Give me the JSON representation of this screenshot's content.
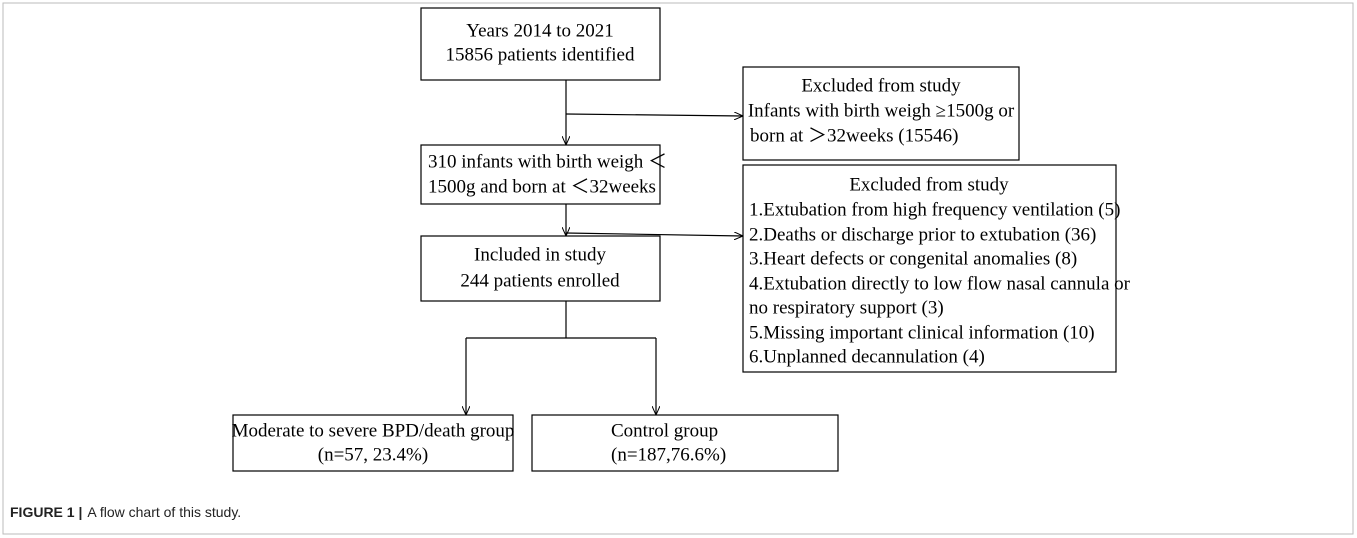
{
  "boxes": [
    {
      "lines": [
        "Years 2014 to 2021",
        "15856 patients identified"
      ]
    },
    {
      "lines": [
        "Excluded from study",
        "Infants with birth weigh ≥1500g or",
        "born at ＞32weeks (15546)"
      ]
    },
    {
      "lines": [
        "310 infants with birth weigh ＜",
        "1500g and born at ＜32weeks"
      ]
    },
    {
      "lines": [
        "Excluded from study",
        "1.Extubation from high frequency ventilation (5)",
        "2.Deaths or discharge prior to extubation (36)",
        "3.Heart defects or congenital anomalies (8)",
        "4.Extubation directly to low flow nasal cannula or",
        "no respiratory support (3)",
        "5.Missing important clinical information (10)",
        "6.Unplanned decannulation (4)"
      ]
    },
    {
      "lines": [
        "Included in study",
        "244 patients enrolled"
      ]
    },
    {
      "lines": [
        "Moderate to severe BPD/death group",
        "(n=57, 23.4%)"
      ]
    },
    {
      "lines": [
        "Control group",
        "(n=187,76.6%)"
      ]
    }
  ],
  "caption": {
    "label": "FIGURE 1 |",
    "text": "A flow chart of this study."
  }
}
